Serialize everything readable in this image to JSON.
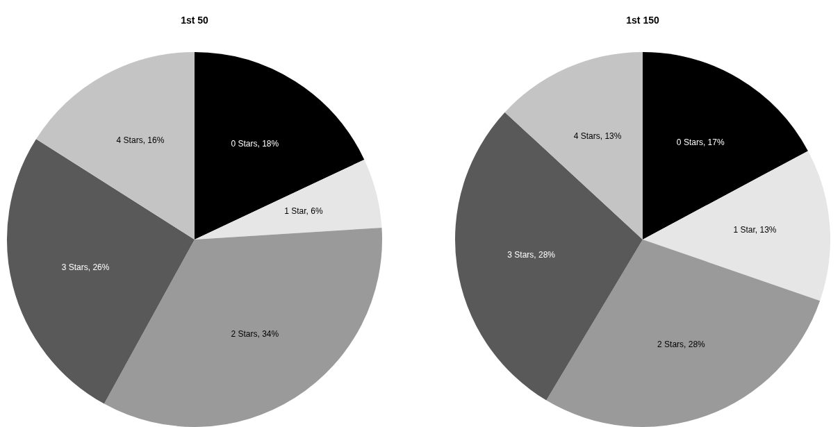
{
  "chart_data": [
    {
      "type": "pie",
      "title": "1st 50",
      "categories": [
        "0 Stars",
        "1 Star",
        "2 Stars",
        "3 Stars",
        "4 Stars"
      ],
      "values": [
        18,
        6,
        34,
        26,
        16
      ],
      "value_labels": [
        "18%",
        "6%",
        "34%",
        "26%",
        "16%"
      ],
      "colors": [
        "#000000",
        "#e6e6e6",
        "#9a9a9a",
        "#595959",
        "#c4c4c4"
      ],
      "legend": false
    },
    {
      "type": "pie",
      "title": "1st 150",
      "categories": [
        "0 Stars",
        "1 Star",
        "2 Stars",
        "3 Stars",
        "4 Stars"
      ],
      "values": [
        17,
        13,
        28,
        28,
        13
      ],
      "value_labels": [
        "17%",
        "13%",
        "28%",
        "28%",
        "13%"
      ],
      "colors": [
        "#000000",
        "#e6e6e6",
        "#9a9a9a",
        "#595959",
        "#c4c4c4"
      ],
      "legend": false
    }
  ]
}
